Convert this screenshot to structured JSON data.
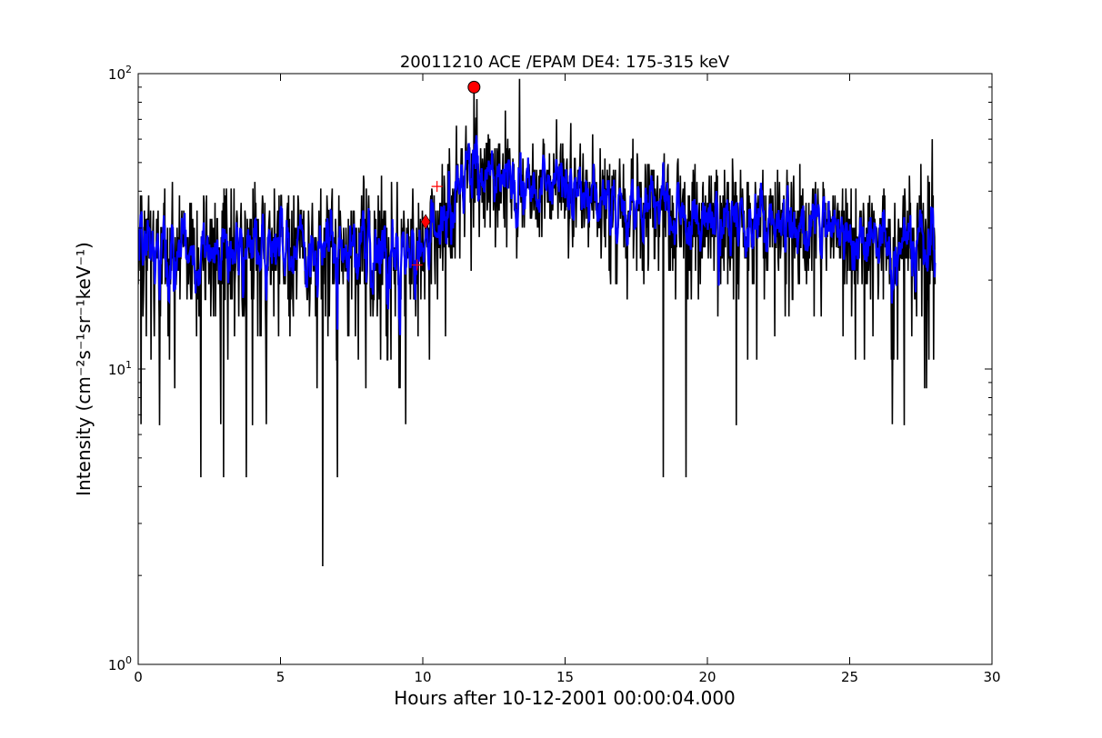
{
  "chart_data": {
    "type": "line",
    "title": "20011210 ACE /EPAM DE4: 175-315 keV",
    "xlabel": "Hours after 10-12-2001 00:00:04.000",
    "ylabel": "Intensity (cm⁻²s⁻¹sr⁻¹keV⁻¹)",
    "xlim": [
      0,
      30
    ],
    "ylim": [
      1,
      100
    ],
    "yscale": "log",
    "x_ticks": [
      0,
      5,
      10,
      15,
      20,
      25,
      30
    ],
    "y_ticks": [
      {
        "value": 1,
        "base": "10",
        "exp": "0"
      },
      {
        "value": 10,
        "base": "10",
        "exp": "1"
      },
      {
        "value": 100,
        "base": "10",
        "exp": "2"
      }
    ],
    "grid": false,
    "colors": {
      "raw": "#000000",
      "smoothed": "#0000ff",
      "markers": "#ff0000"
    },
    "series": [
      {
        "style": "raw",
        "profile": [
          {
            "x": 0.0,
            "y": 25
          },
          {
            "x": 2.0,
            "y": 25
          },
          {
            "x": 4.0,
            "y": 25
          },
          {
            "x": 6.0,
            "y": 25
          },
          {
            "x": 8.0,
            "y": 25
          },
          {
            "x": 9.5,
            "y": 24
          },
          {
            "x": 10.3,
            "y": 27
          },
          {
            "x": 11.0,
            "y": 33
          },
          {
            "x": 11.3,
            "y": 45
          },
          {
            "x": 12.0,
            "y": 45
          },
          {
            "x": 14.0,
            "y": 40
          },
          {
            "x": 16.0,
            "y": 38
          },
          {
            "x": 18.0,
            "y": 36
          },
          {
            "x": 20.0,
            "y": 33
          },
          {
            "x": 22.0,
            "y": 31
          },
          {
            "x": 24.0,
            "y": 29
          },
          {
            "x": 26.0,
            "y": 27
          },
          {
            "x": 28.0,
            "y": 26
          }
        ],
        "x_end": 28.0,
        "dips": [
          {
            "x": 2.2,
            "y": 4.3
          },
          {
            "x": 3.0,
            "y": 4.3
          },
          {
            "x": 3.8,
            "y": 4.3
          },
          {
            "x": 7.0,
            "y": 4.3
          },
          {
            "x": 18.45,
            "y": 4.3
          },
          {
            "x": 19.25,
            "y": 4.3
          },
          {
            "x": 0.1,
            "y": 6.5
          },
          {
            "x": 2.9,
            "y": 6.5
          },
          {
            "x": 4.5,
            "y": 6.5
          },
          {
            "x": 9.4,
            "y": 6.5
          },
          {
            "x": 26.5,
            "y": 6.5
          }
        ],
        "spikes": [
          {
            "x": 13.4,
            "y": 96
          },
          {
            "x": 11.8,
            "y": 88
          },
          {
            "x": 11.9,
            "y": 82
          },
          {
            "x": 12.9,
            "y": 75
          },
          {
            "x": 14.7,
            "y": 70
          },
          {
            "x": 15.2,
            "y": 68
          },
          {
            "x": 27.9,
            "y": 60
          }
        ]
      },
      {
        "style": "smoothed",
        "profile": [
          {
            "x": 0.0,
            "y": 25
          },
          {
            "x": 2.0,
            "y": 25
          },
          {
            "x": 4.0,
            "y": 25
          },
          {
            "x": 6.0,
            "y": 25
          },
          {
            "x": 8.0,
            "y": 25
          },
          {
            "x": 9.5,
            "y": 24
          },
          {
            "x": 10.3,
            "y": 27
          },
          {
            "x": 11.0,
            "y": 33
          },
          {
            "x": 11.3,
            "y": 45
          },
          {
            "x": 12.0,
            "y": 45
          },
          {
            "x": 14.0,
            "y": 40
          },
          {
            "x": 16.0,
            "y": 38
          },
          {
            "x": 18.0,
            "y": 36
          },
          {
            "x": 20.0,
            "y": 33
          },
          {
            "x": 22.0,
            "y": 31
          },
          {
            "x": 24.0,
            "y": 29
          },
          {
            "x": 26.0,
            "y": 27
          },
          {
            "x": 28.0,
            "y": 26
          }
        ],
        "x_end": 28.0
      }
    ],
    "markers": [
      {
        "x": 11.8,
        "y": 90,
        "shape": "circle"
      },
      {
        "x": 10.1,
        "y": 31.5,
        "shape": "diamond"
      },
      {
        "x": 9.8,
        "y": 22.5,
        "shape": "plus"
      },
      {
        "x": 10.5,
        "y": 41.5,
        "shape": "plus"
      }
    ]
  }
}
